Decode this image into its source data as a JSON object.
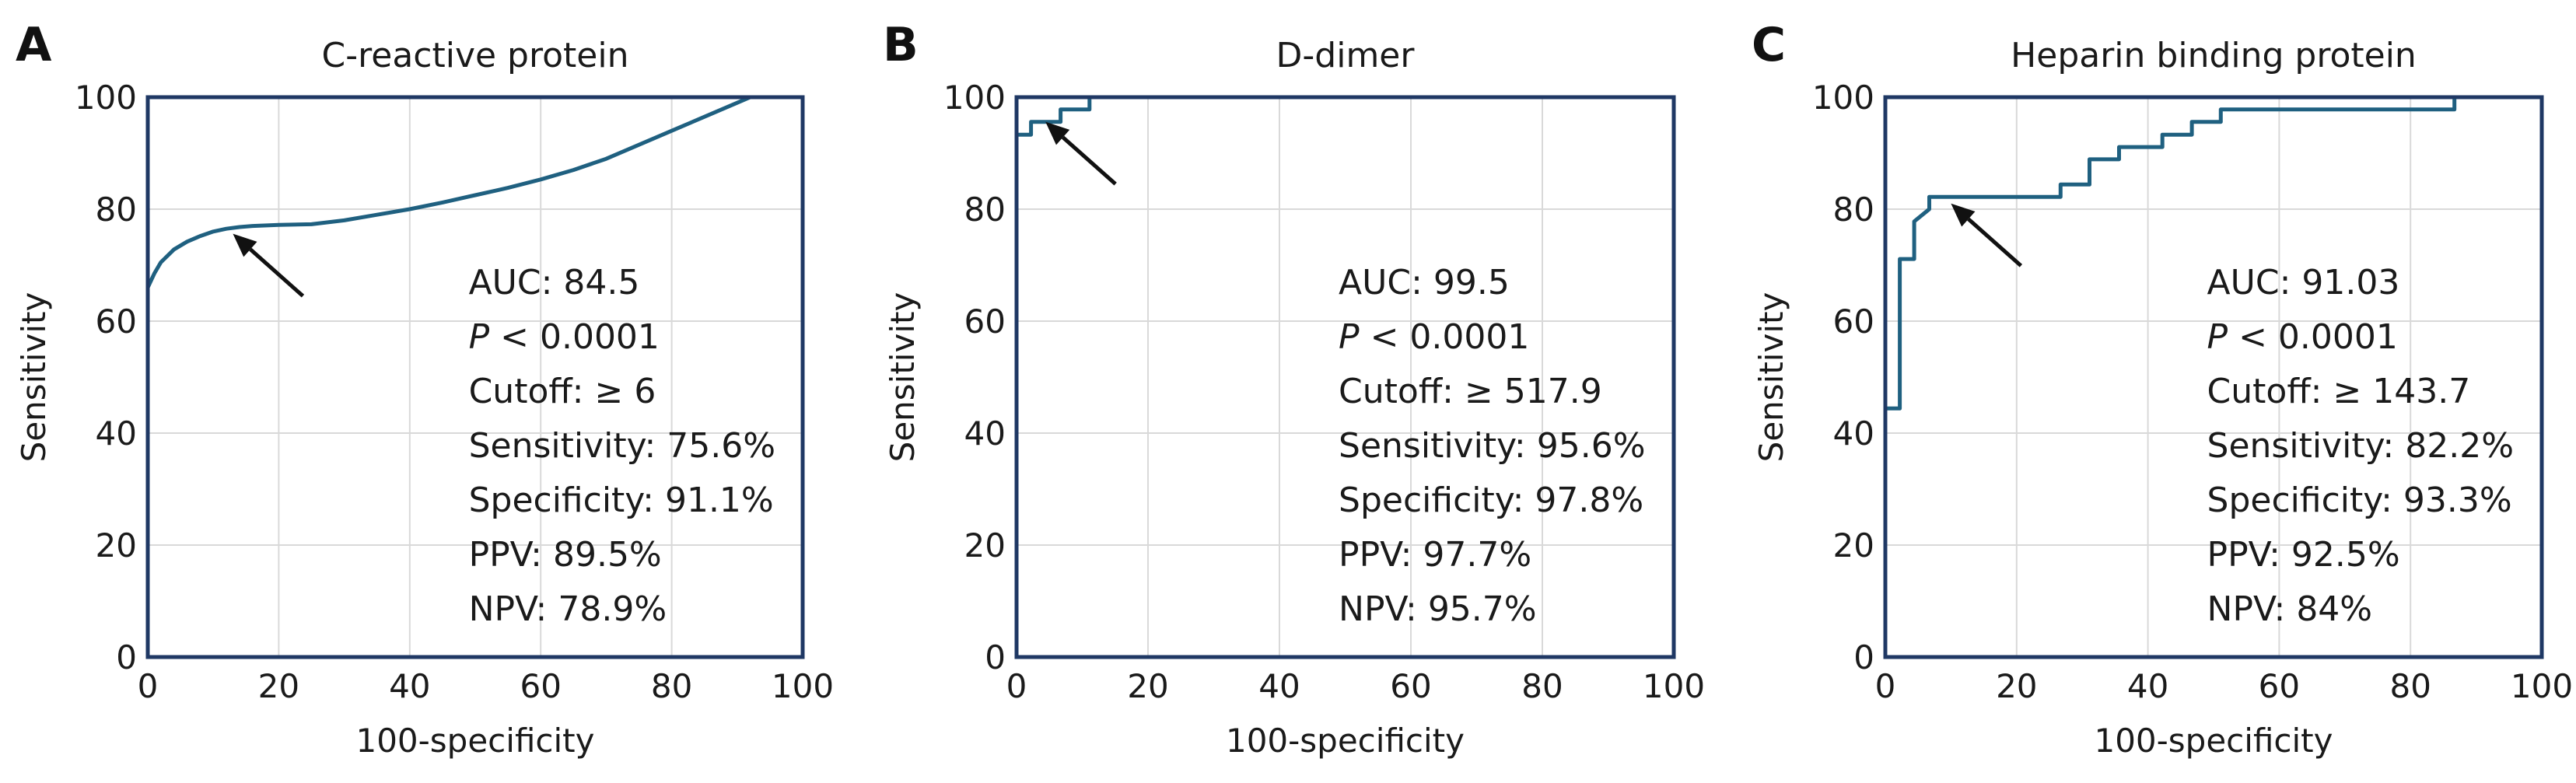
{
  "chart_data": [
    {
      "type": "line",
      "panel": "A",
      "title": "C-reactive protein",
      "xlabel": "100-specificity",
      "ylabel": "Sensitivity",
      "xlim": [
        0,
        100
      ],
      "ylim": [
        0,
        100
      ],
      "xticks": [
        "0",
        "20",
        "40",
        "60",
        "80",
        "100"
      ],
      "yticks": [
        "0",
        "20",
        "40",
        "60",
        "80",
        "100"
      ],
      "grid": true,
      "x": [
        0,
        0,
        1,
        2,
        4,
        6,
        8,
        10,
        12,
        14,
        16,
        20,
        25,
        30,
        35,
        40,
        45,
        50,
        55,
        60,
        65,
        70,
        75,
        80,
        85,
        90,
        92,
        100
      ],
      "y": [
        0,
        66,
        68.5,
        70.5,
        72.8,
        74.2,
        75.2,
        76.0,
        76.5,
        76.8,
        77.0,
        77.2,
        77.3,
        78.0,
        79.0,
        80.0,
        81.2,
        82.5,
        83.8,
        85.3,
        87.0,
        89.0,
        91.5,
        94.0,
        96.5,
        99.0,
        100,
        100
      ],
      "arrow_target": [
        13,
        75.6
      ],
      "stats": {
        "auc": "AUC: 84.5",
        "p_italic": "P",
        "p_rest": " < 0.0001",
        "cutoff": "Cutoff: ≥ 6",
        "sensitivity": "Sensitivity: 75.6%",
        "specificity": "Specificity: 91.1%",
        "ppv": "PPV: 89.5%",
        "npv": "NPV: 78.9%"
      }
    },
    {
      "type": "line",
      "panel": "B",
      "title": "D-dimer",
      "xlabel": "100-specificity",
      "ylabel": "Sensitivity",
      "xlim": [
        0,
        100
      ],
      "ylim": [
        0,
        100
      ],
      "xticks": [
        "0",
        "20",
        "40",
        "60",
        "80",
        "100"
      ],
      "yticks": [
        "0",
        "20",
        "40",
        "60",
        "80",
        "100"
      ],
      "grid": true,
      "x": [
        0,
        0,
        2.2,
        2.2,
        4.4,
        4.4,
        6.7,
        6.7,
        11.1,
        11.1,
        100
      ],
      "y": [
        0,
        93.3,
        93.3,
        95.6,
        95.6,
        95.6,
        95.6,
        97.8,
        97.8,
        100,
        100
      ],
      "arrow_target": [
        4.4,
        95.6
      ],
      "stats": {
        "auc": "AUC: 99.5",
        "p_italic": "P",
        "p_rest": " < 0.0001",
        "cutoff": "Cutoff: ≥ 517.9",
        "sensitivity": "Sensitivity: 95.6%",
        "specificity": "Specificity: 97.8%",
        "ppv": "PPV: 97.7%",
        "npv": "NPV: 95.7%"
      }
    },
    {
      "type": "line",
      "panel": "C",
      "title": "Heparin binding protein",
      "xlabel": "100-specificity",
      "ylabel": "Sensitivity",
      "xlim": [
        0,
        100
      ],
      "ylim": [
        0,
        100
      ],
      "xticks": [
        "0",
        "20",
        "40",
        "60",
        "80",
        "100"
      ],
      "yticks": [
        "0",
        "20",
        "40",
        "60",
        "80",
        "100"
      ],
      "grid": true,
      "x": [
        0,
        0,
        2.2,
        2.2,
        4.4,
        4.4,
        6.7,
        6.7,
        26.7,
        26.7,
        31.1,
        31.1,
        35.6,
        35.6,
        42.2,
        42.2,
        46.7,
        46.7,
        51.1,
        51.1,
        86.7,
        86.7,
        100
      ],
      "y": [
        0,
        44.4,
        44.4,
        71.1,
        71.1,
        77.8,
        80.0,
        82.2,
        82.2,
        84.4,
        84.4,
        88.9,
        88.9,
        91.1,
        91.1,
        93.3,
        93.3,
        95.6,
        95.6,
        97.8,
        97.8,
        100,
        100
      ],
      "arrow_target": [
        10,
        81
      ],
      "stats": {
        "auc": "AUC: 91.03",
        "p_italic": "P",
        "p_rest": " < 0.0001",
        "cutoff": "Cutoff: ≥ 143.7",
        "sensitivity": "Sensitivity: 82.2%",
        "specificity": "Specificity: 93.3%",
        "ppv": "PPV: 92.5%",
        "npv": "NPV: 84%"
      }
    }
  ]
}
